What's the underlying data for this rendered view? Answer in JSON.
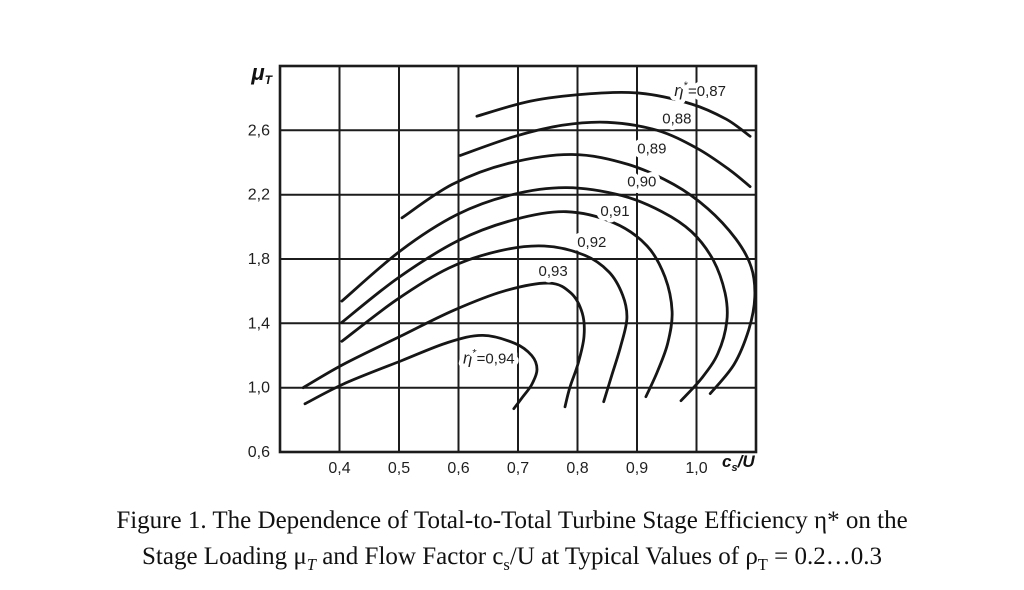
{
  "figure": {
    "caption_line1": [
      {
        "t": "Figure 1. The Dependence of Total-to-Total Turbine Stage Efficiency η* on the"
      }
    ],
    "caption_line2": [
      {
        "t": "Stage Loading μ"
      },
      {
        "t": "T",
        "sub": true,
        "italic": true
      },
      {
        "t": " and Flow Factor c"
      },
      {
        "t": "s",
        "sub": true
      },
      {
        "t": "/U at Typical Values of ρ"
      },
      {
        "t": "T",
        "sub": true
      },
      {
        "t": " = 0.2…0.3"
      }
    ]
  },
  "chart_data": {
    "type": "contour",
    "title": "",
    "grid": true,
    "line_color": "#161616",
    "grid_color": "#1c1c1c",
    "x_axis": {
      "label": {
        "base": "c",
        "sub": "s",
        "rest": "/U"
      },
      "range": [
        0.3,
        1.1
      ],
      "gridlines": [
        0.3,
        0.4,
        0.5,
        0.6,
        0.7,
        0.8,
        0.9,
        1.0,
        1.1
      ],
      "ticks": [
        {
          "v": 0.4,
          "label": "0,4"
        },
        {
          "v": 0.5,
          "label": "0,5"
        },
        {
          "v": 0.6,
          "label": "0,6"
        },
        {
          "v": 0.7,
          "label": "0,7"
        },
        {
          "v": 0.8,
          "label": "0,8"
        },
        {
          "v": 0.9,
          "label": "0,9"
        },
        {
          "v": 1.0,
          "label": "1,0"
        }
      ]
    },
    "y_axis": {
      "label": {
        "base": "μ",
        "sub": "T"
      },
      "range": [
        0.6,
        3.0
      ],
      "gridlines": [
        0.6,
        1.0,
        1.4,
        1.8,
        2.2,
        2.6,
        3.0
      ],
      "ticks": [
        {
          "v": 0.6,
          "label": "0,6"
        },
        {
          "v": 1.0,
          "label": "1,0"
        },
        {
          "v": 1.4,
          "label": "1,4"
        },
        {
          "v": 1.8,
          "label": "1,8"
        },
        {
          "v": 2.2,
          "label": "2,2"
        },
        {
          "v": 2.6,
          "label": "2,6"
        }
      ]
    },
    "contours": [
      {
        "level": "0,87",
        "show_eta": true,
        "label_pos": [
          1.006,
          2.844
        ],
        "points": [
          [
            0.631,
            2.688
          ],
          [
            0.72,
            2.781
          ],
          [
            0.813,
            2.825
          ],
          [
            0.905,
            2.831
          ],
          [
            0.992,
            2.763
          ],
          [
            1.05,
            2.669
          ],
          [
            1.09,
            2.563
          ]
        ]
      },
      {
        "level": "0,88",
        "show_eta": false,
        "label_pos": [
          0.967,
          2.675
        ],
        "points": [
          [
            0.603,
            2.444
          ],
          [
            0.695,
            2.563
          ],
          [
            0.774,
            2.631
          ],
          [
            0.85,
            2.65
          ],
          [
            0.934,
            2.6
          ],
          [
            1.001,
            2.488
          ],
          [
            1.055,
            2.356
          ],
          [
            1.09,
            2.25
          ]
        ]
      },
      {
        "level": "0,89",
        "show_eta": false,
        "label_pos": [
          0.925,
          2.488
        ],
        "points": [
          [
            0.505,
            2.056
          ],
          [
            0.589,
            2.263
          ],
          [
            0.683,
            2.394
          ],
          [
            0.791,
            2.45
          ],
          [
            0.885,
            2.388
          ],
          [
            0.962,
            2.263
          ],
          [
            1.019,
            2.113
          ],
          [
            1.066,
            1.925
          ],
          [
            1.092,
            1.75
          ],
          [
            1.098,
            1.563
          ],
          [
            1.088,
            1.363
          ],
          [
            1.063,
            1.144
          ],
          [
            1.023,
            0.963
          ]
        ]
      },
      {
        "level": "0,90",
        "show_eta": false,
        "label_pos": [
          0.908,
          2.281
        ],
        "points": [
          [
            0.404,
            1.538
          ],
          [
            0.502,
            1.85
          ],
          [
            0.597,
            2.075
          ],
          [
            0.69,
            2.2
          ],
          [
            0.782,
            2.244
          ],
          [
            0.875,
            2.194
          ],
          [
            0.942,
            2.094
          ],
          [
            0.992,
            1.969
          ],
          [
            1.028,
            1.794
          ],
          [
            1.048,
            1.588
          ],
          [
            1.051,
            1.413
          ],
          [
            1.036,
            1.213
          ],
          [
            1.008,
            1.056
          ],
          [
            0.974,
            0.919
          ]
        ]
      },
      {
        "level": "0,91",
        "show_eta": false,
        "label_pos": [
          0.863,
          2.1
        ],
        "points": [
          [
            0.404,
            1.406
          ],
          [
            0.498,
            1.681
          ],
          [
            0.599,
            1.913
          ],
          [
            0.693,
            2.044
          ],
          [
            0.781,
            2.094
          ],
          [
            0.861,
            2.025
          ],
          [
            0.917,
            1.881
          ],
          [
            0.947,
            1.688
          ],
          [
            0.959,
            1.475
          ],
          [
            0.952,
            1.281
          ],
          [
            0.935,
            1.106
          ],
          [
            0.915,
            0.944
          ]
        ]
      },
      {
        "level": "0,92",
        "show_eta": false,
        "label_pos": [
          0.824,
          1.906
        ],
        "points": [
          [
            0.404,
            1.288
          ],
          [
            0.495,
            1.544
          ],
          [
            0.584,
            1.744
          ],
          [
            0.668,
            1.85
          ],
          [
            0.744,
            1.881
          ],
          [
            0.811,
            1.825
          ],
          [
            0.853,
            1.719
          ],
          [
            0.876,
            1.575
          ],
          [
            0.883,
            1.431
          ],
          [
            0.873,
            1.263
          ],
          [
            0.858,
            1.081
          ],
          [
            0.844,
            0.913
          ]
        ]
      },
      {
        "level": "0,93",
        "show_eta": false,
        "label_pos": [
          0.759,
          1.725
        ],
        "points": [
          [
            0.339,
            1.0
          ],
          [
            0.406,
            1.144
          ],
          [
            0.502,
            1.319
          ],
          [
            0.592,
            1.481
          ],
          [
            0.676,
            1.6
          ],
          [
            0.752,
            1.65
          ],
          [
            0.789,
            1.588
          ],
          [
            0.808,
            1.463
          ],
          [
            0.811,
            1.319
          ],
          [
            0.801,
            1.15
          ],
          [
            0.787,
            1.0
          ],
          [
            0.779,
            0.881
          ]
        ]
      },
      {
        "level": "0,94",
        "show_eta": true,
        "label_pos": [
          0.651,
          1.181
        ],
        "points": [
          [
            0.342,
            0.9
          ],
          [
            0.408,
            1.025
          ],
          [
            0.505,
            1.169
          ],
          [
            0.582,
            1.281
          ],
          [
            0.641,
            1.325
          ],
          [
            0.695,
            1.275
          ],
          [
            0.723,
            1.2
          ],
          [
            0.732,
            1.113
          ],
          [
            0.723,
            1.019
          ],
          [
            0.707,
            0.938
          ],
          [
            0.693,
            0.869
          ]
        ]
      }
    ]
  }
}
